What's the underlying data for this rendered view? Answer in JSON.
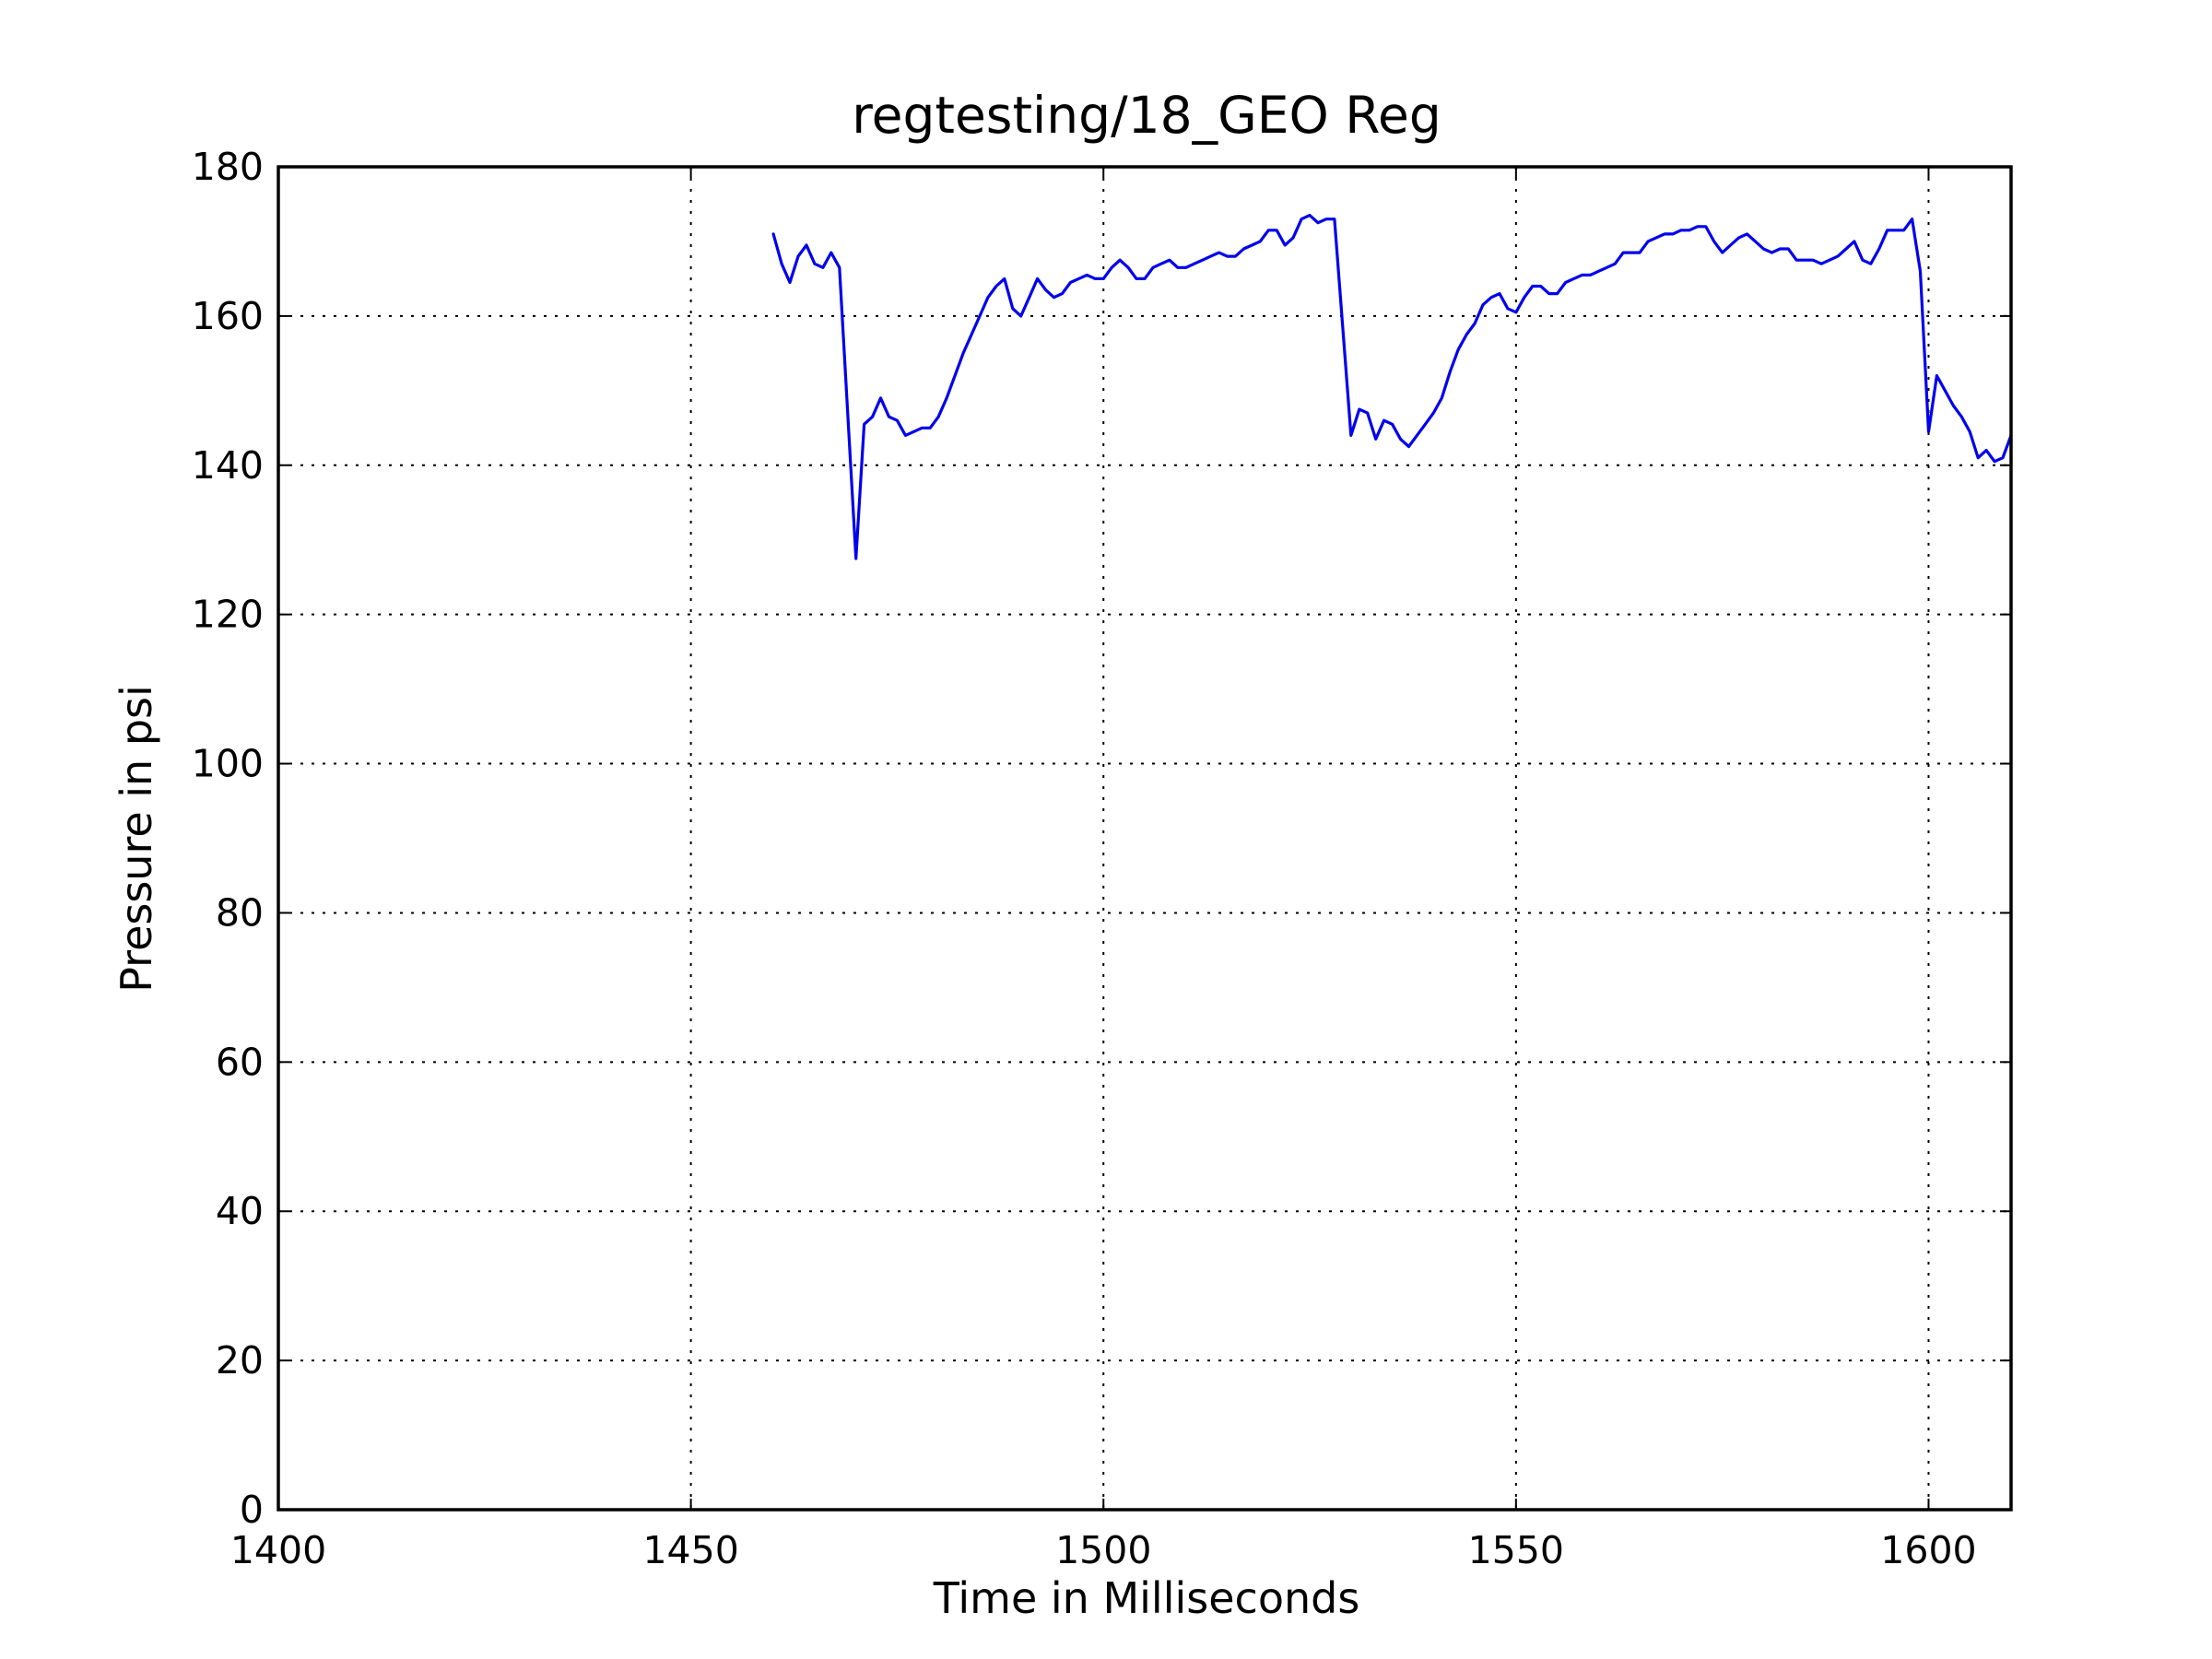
{
  "chart_data": {
    "type": "line",
    "title": "regtesting/18_GEO Reg",
    "xlabel": "Time in Milliseconds",
    "ylabel": "Pressure in psi",
    "xlim": [
      1400,
      1610
    ],
    "ylim": [
      0,
      180
    ],
    "xticks": [
      1400,
      1450,
      1500,
      1550,
      1600
    ],
    "yticks": [
      0,
      20,
      40,
      60,
      80,
      100,
      120,
      140,
      160,
      180
    ],
    "grid": true,
    "line_color": "#0000ee",
    "series": [
      {
        "x": [
          1460,
          1461,
          1462,
          1463,
          1464,
          1465,
          1466,
          1467,
          1468,
          1470,
          1471,
          1472,
          1473,
          1474,
          1475,
          1476,
          1477,
          1478,
          1479,
          1480,
          1481,
          1482,
          1483,
          1484,
          1485,
          1486,
          1487,
          1488,
          1489,
          1490,
          1491,
          1492,
          1493,
          1494,
          1495,
          1496,
          1497,
          1498,
          1499,
          1500,
          1501,
          1502,
          1503,
          1504,
          1505,
          1506,
          1507,
          1508,
          1509,
          1510,
          1511,
          1512,
          1513,
          1514,
          1515,
          1516,
          1517,
          1518,
          1519,
          1520,
          1521,
          1522,
          1523,
          1524,
          1525,
          1526,
          1527,
          1528,
          1530,
          1531,
          1532,
          1533,
          1534,
          1535,
          1536,
          1537,
          1538,
          1539,
          1540,
          1541,
          1542,
          1543,
          1544,
          1545,
          1546,
          1547,
          1548,
          1549,
          1550,
          1551,
          1552,
          1553,
          1554,
          1555,
          1556,
          1557,
          1558,
          1559,
          1560,
          1561,
          1562,
          1563,
          1564,
          1565,
          1566,
          1567,
          1568,
          1569,
          1570,
          1571,
          1572,
          1573,
          1574,
          1575,
          1576,
          1577,
          1578,
          1579,
          1580,
          1581,
          1582,
          1583,
          1584,
          1585,
          1586,
          1587,
          1588,
          1589,
          1590,
          1591,
          1592,
          1593,
          1594,
          1595,
          1596,
          1597,
          1598,
          1599,
          1600,
          1601,
          1602,
          1603,
          1604,
          1605,
          1606,
          1607,
          1608,
          1609,
          1610
        ],
        "y": [
          171,
          167,
          164.5,
          168,
          169.5,
          167,
          166.5,
          168.5,
          166.5,
          127.5,
          145.5,
          146.5,
          149,
          146.5,
          146,
          144,
          144.5,
          145,
          145,
          146.5,
          149,
          152,
          155,
          157.5,
          160,
          162.5,
          164,
          165,
          161,
          160,
          162.5,
          165,
          163.5,
          162.5,
          163,
          164.5,
          165,
          165.5,
          165,
          165,
          166.5,
          167.5,
          166.5,
          165,
          165,
          166.5,
          167,
          167.5,
          166.5,
          166.5,
          167,
          167.5,
          168,
          168.5,
          168,
          168,
          169,
          169.5,
          170,
          171.5,
          171.5,
          169.5,
          170.5,
          173,
          173.5,
          172.5,
          173,
          173,
          144,
          147.5,
          147,
          143.5,
          146,
          145.5,
          143.5,
          142.5,
          144,
          145.5,
          147,
          149,
          152.5,
          155.5,
          157.5,
          159,
          161.5,
          162.5,
          163,
          161,
          160.5,
          162.5,
          164,
          164,
          163,
          163,
          164.5,
          165,
          165.5,
          165.5,
          166,
          166.5,
          167,
          168.5,
          168.5,
          168.5,
          170,
          170.5,
          171,
          171,
          171.5,
          171.5,
          172,
          172,
          170,
          168.5,
          169.5,
          170.5,
          171,
          170,
          169,
          168.5,
          169,
          169,
          167.5,
          167.5,
          167.5,
          167,
          167.5,
          168,
          169,
          170,
          167.5,
          167,
          169,
          171.5,
          171.5,
          171.5,
          173,
          166,
          144.5,
          152,
          150,
          148,
          146.5,
          144.5,
          141,
          142,
          140.5,
          141,
          144
        ]
      }
    ]
  }
}
